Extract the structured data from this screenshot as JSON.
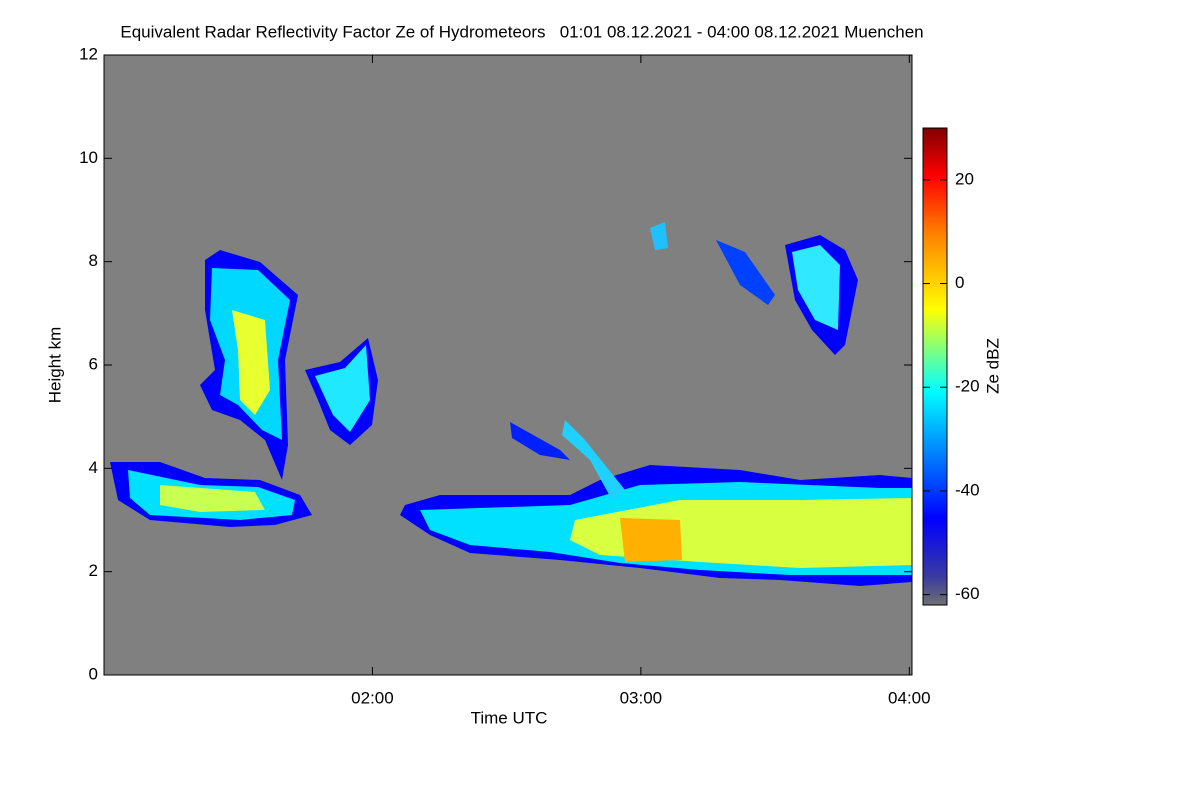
{
  "chart_data": {
    "type": "heatmap",
    "title": "Equivalent Radar Reflectivity Factor Ze of Hydrometeors   01:01 08.12.2021 - 04:00 08.12.2021 Muenchen",
    "x_label": "Time UTC",
    "y_label": "Height km",
    "colorbar_label": "Ze dBZ",
    "xlim": [
      1,
      4.01
    ],
    "xticks": [
      {
        "value": 2,
        "label": "02:00"
      },
      {
        "value": 3,
        "label": "03:00"
      },
      {
        "value": 4,
        "label": "04:00"
      }
    ],
    "ylim": [
      0,
      12
    ],
    "yticks": [
      0,
      2,
      4,
      6,
      8,
      10,
      12
    ],
    "zlim": [
      -62,
      30
    ],
    "zticks": [
      -60,
      -40,
      -20,
      0,
      20
    ]
  }
}
